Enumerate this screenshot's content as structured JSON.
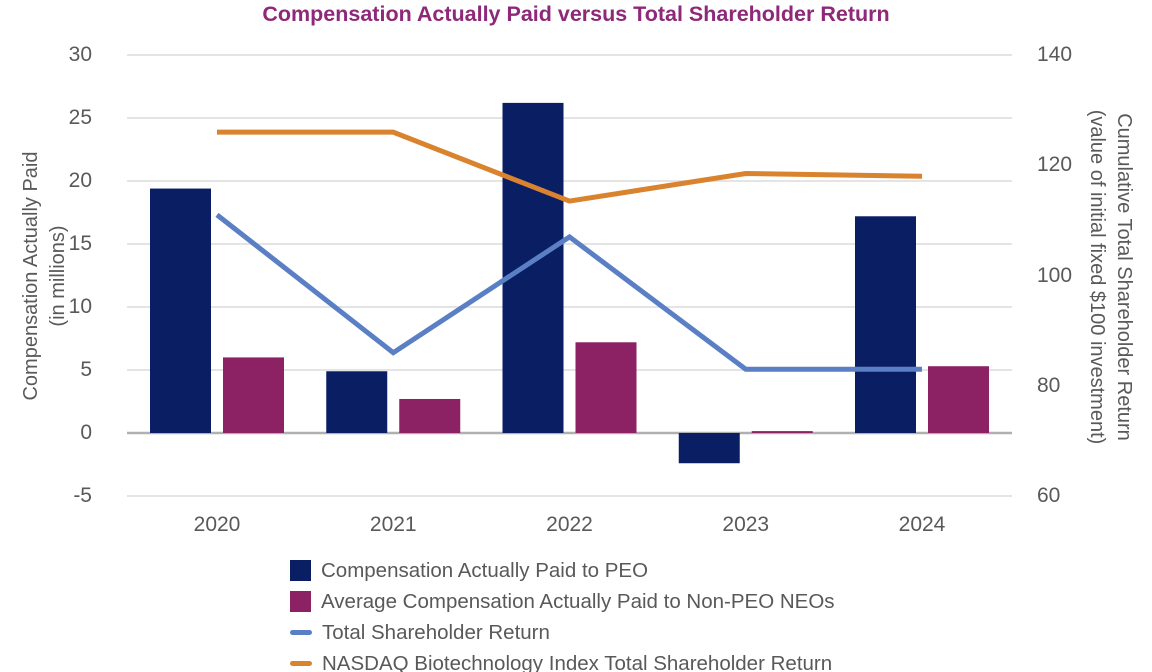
{
  "title": "Compensation Actually Paid versus Total Shareholder Return",
  "colors": {
    "title": "#8e2878",
    "axis_text": "#595959",
    "grid": "#e4e4e4",
    "zero_line": "#b0b0b3",
    "background": "#ffffff",
    "peo_bar": "#0a1e64",
    "non_peo_bar": "#8c2164",
    "tsr_line": "#5a7fc5",
    "nasdaq_line": "#d9832f"
  },
  "chart_data": {
    "type": "bar",
    "subtype": "combo-bar-line-dual-axis",
    "categories": [
      "2020",
      "2021",
      "2022",
      "2023",
      "2024"
    ],
    "series": [
      {
        "name": "Compensation Actually Paid to PEO",
        "type": "bar",
        "axis": "left",
        "color": "#0a1e64",
        "values": [
          19.4,
          4.9,
          26.2,
          -2.4,
          17.2
        ]
      },
      {
        "name": "Average Compensation Actually Paid to Non-PEO NEOs",
        "type": "bar",
        "axis": "left",
        "color": "#8c2164",
        "values": [
          6.0,
          2.7,
          7.2,
          0.15,
          5.3
        ]
      },
      {
        "name": "Total Shareholder Return",
        "type": "line",
        "axis": "right",
        "color": "#5a7fc5",
        "values": [
          111,
          86,
          107,
          83,
          83
        ]
      },
      {
        "name": "NASDAQ Biotechnology Index Total Shareholder Return",
        "type": "line",
        "axis": "right",
        "color": "#d9832f",
        "values": [
          126,
          126,
          113.5,
          118.5,
          118
        ]
      }
    ],
    "left_axis": {
      "title_line1": "Compensation Actually Paid",
      "title_line2": "(in millions)",
      "ticks": [
        "30",
        "25",
        "20",
        "15",
        "10",
        "5",
        "0",
        "-5"
      ],
      "min": -5,
      "max": 30
    },
    "right_axis": {
      "title_line1": "Cumulative Total Shareholder Return",
      "title_line2": "(value of initial fixed $100 investment)",
      "ticks": [
        "140",
        "120",
        "100",
        "80",
        "60"
      ],
      "min": 60,
      "max": 140
    },
    "grid": true,
    "legend_position": "bottom-left"
  }
}
